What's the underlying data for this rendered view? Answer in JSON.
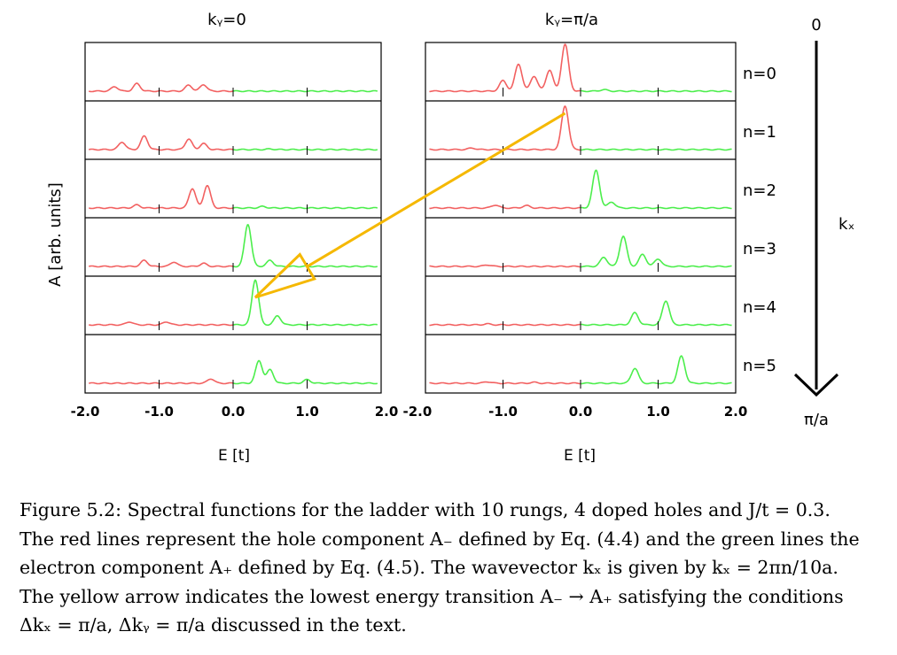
{
  "chart_data": {
    "type": "line",
    "panels": [
      {
        "title": "kᵧ=0",
        "xlabel": "E [t]"
      },
      {
        "title": "kᵧ=π/a",
        "xlabel": "E [t]"
      }
    ],
    "xlim": [
      -2.0,
      2.0
    ],
    "xticks": [
      "-2.0",
      "-1.0",
      "0.0",
      "1.0",
      "2.0"
    ],
    "ylabel": "A [arb. units]",
    "row_labels": [
      "n=0",
      "n=1",
      "n=2",
      "n=3",
      "n=4",
      "n=5"
    ],
    "series_colors": {
      "hole": "#f26161",
      "electron": "#4cee4c",
      "arrow": "#f5b800"
    },
    "kx_axis": {
      "top": "0",
      "label": "kₓ",
      "bottom": "π/a"
    },
    "arrow": {
      "from": {
        "panel": 2,
        "row": "n=1",
        "E": -0.2
      },
      "to": {
        "panel": 1,
        "row": "n=4",
        "E": 0.3
      }
    },
    "peaks": [
      {
        "panel": 1,
        "row": "n=0",
        "hole": [
          [
            -1.6,
            0.15
          ],
          [
            -1.3,
            0.25
          ],
          [
            -0.6,
            0.2
          ],
          [
            -0.4,
            0.22
          ]
        ],
        "electron": []
      },
      {
        "panel": 1,
        "row": "n=1",
        "hole": [
          [
            -1.5,
            0.25
          ],
          [
            -1.2,
            0.45
          ],
          [
            -0.6,
            0.35
          ],
          [
            -0.4,
            0.2
          ]
        ],
        "electron": [
          [
            0.5,
            0.02
          ]
        ]
      },
      {
        "panel": 1,
        "row": "n=2",
        "hole": [
          [
            -1.3,
            0.1
          ],
          [
            -0.55,
            0.65
          ],
          [
            -0.35,
            0.75
          ]
        ],
        "electron": [
          [
            0.4,
            0.05
          ]
        ]
      },
      {
        "panel": 1,
        "row": "n=3",
        "hole": [
          [
            -1.2,
            0.2
          ],
          [
            -0.8,
            0.15
          ],
          [
            -0.4,
            0.1
          ]
        ],
        "electron": [
          [
            0.2,
            1.4
          ],
          [
            0.5,
            0.2
          ]
        ]
      },
      {
        "panel": 1,
        "row": "n=4",
        "hole": [
          [
            -1.4,
            0.1
          ],
          [
            -0.9,
            0.1
          ]
        ],
        "electron": [
          [
            0.3,
            1.5
          ],
          [
            0.6,
            0.3
          ]
        ]
      },
      {
        "panel": 1,
        "row": "n=5",
        "hole": [
          [
            -0.3,
            0.15
          ]
        ],
        "electron": [
          [
            0.35,
            0.75
          ],
          [
            0.5,
            0.45
          ],
          [
            1.0,
            0.12
          ]
        ]
      },
      {
        "panel": 2,
        "row": "n=0",
        "hole": [
          [
            -1.0,
            0.35
          ],
          [
            -0.8,
            0.9
          ],
          [
            -0.6,
            0.5
          ],
          [
            -0.4,
            0.7
          ],
          [
            -0.2,
            1.55
          ]
        ],
        "electron": [
          [
            0.3,
            0.05
          ]
        ]
      },
      {
        "panel": 2,
        "row": "n=1",
        "hole": [
          [
            -1.4,
            0.05
          ],
          [
            -0.2,
            1.45
          ]
        ],
        "electron": []
      },
      {
        "panel": 2,
        "row": "n=2",
        "hole": [
          [
            -1.1,
            0.1
          ],
          [
            -0.7,
            0.08
          ]
        ],
        "electron": [
          [
            0.2,
            1.25
          ],
          [
            0.4,
            0.2
          ]
        ]
      },
      {
        "panel": 2,
        "row": "n=3",
        "hole": [
          [
            -1.2,
            0.05
          ]
        ],
        "electron": [
          [
            0.3,
            0.3
          ],
          [
            0.55,
            1.0
          ],
          [
            0.8,
            0.4
          ],
          [
            1.0,
            0.25
          ]
        ]
      },
      {
        "panel": 2,
        "row": "n=4",
        "hole": [
          [
            -1.2,
            0.03
          ]
        ],
        "electron": [
          [
            0.7,
            0.4
          ],
          [
            1.1,
            0.8
          ]
        ]
      },
      {
        "panel": 2,
        "row": "n=5",
        "hole": [
          [
            -1.2,
            0.05
          ],
          [
            -0.6,
            0.03
          ]
        ],
        "electron": [
          [
            0.7,
            0.5
          ],
          [
            1.3,
            0.9
          ]
        ]
      }
    ]
  },
  "caption": {
    "lines": [
      "Figure 5.2: Spectral functions for the ladder with 10 rungs, 4 doped holes and J/t = 0.3.",
      "The red lines represent the hole component A₋ defined by Eq. (4.4) and the green lines the",
      "electron component A₊ defined by Eq. (4.5). The wavevector kₓ is given by kₓ = 2πn/10a.",
      "The yellow arrow indicates the lowest energy transition A₋ → A₊ satisfying the conditions",
      "Δkₓ = π/a, Δkᵧ = π/a discussed in the text."
    ]
  }
}
